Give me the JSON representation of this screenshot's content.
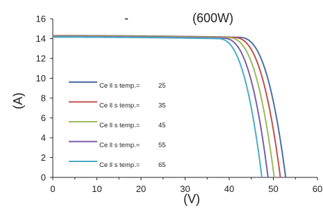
{
  "chart_data": {
    "type": "line",
    "title_left": "-",
    "title_right": "(600W)",
    "xlabel": "(V)",
    "ylabel": "(A)",
    "xlim": [
      0,
      60
    ],
    "ylim": [
      0,
      16
    ],
    "x_ticks": [
      0,
      10,
      20,
      30,
      40,
      50,
      60
    ],
    "y_ticks": [
      0,
      2,
      4,
      6,
      8,
      10,
      12,
      14,
      16
    ],
    "grid": false,
    "legend_position": "left",
    "series": [
      {
        "name": "Ce ll s temp.=",
        "value": "25",
        "color": "#4a6fa5",
        "isc": 14.3,
        "voc": 52.8,
        "knee": 42.0
      },
      {
        "name": "Ce ll s temp.=",
        "value": "35",
        "color": "#c0504d",
        "isc": 14.28,
        "voc": 51.6,
        "knee": 40.8
      },
      {
        "name": "Ce ll s temp.=",
        "value": "45",
        "color": "#9bbb59",
        "isc": 14.25,
        "voc": 50.2,
        "knee": 39.6
      },
      {
        "name": "Ce ll s temp.=",
        "value": "55",
        "color": "#7b5ea7",
        "isc": 14.2,
        "voc": 48.8,
        "knee": 38.4
      },
      {
        "name": "Ce ll s temp.=",
        "value": "65",
        "color": "#4bacc6",
        "isc": 14.15,
        "voc": 47.4,
        "knee": 37.2
      }
    ]
  }
}
